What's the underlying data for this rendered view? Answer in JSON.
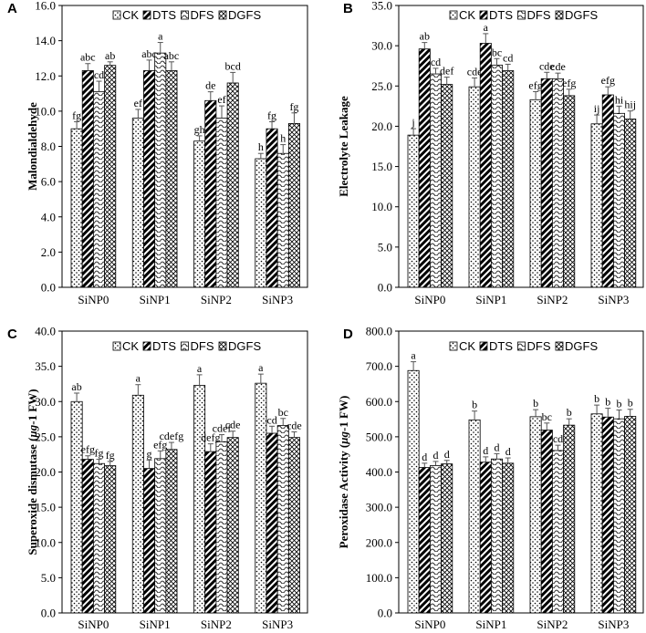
{
  "chart_data": [
    {
      "panel": "A",
      "type": "bar",
      "ylabel": "Malondialdehyde",
      "ylim": [
        0,
        16
      ],
      "yticks": [
        "0.0",
        "2.0",
        "4.0",
        "6.0",
        "8.0",
        "10.0",
        "12.0",
        "14.0",
        "16.0"
      ],
      "categories": [
        "SiNP0",
        "SiNP1",
        "SiNP2",
        "SiNP3"
      ],
      "series": [
        {
          "name": "CK",
          "values": [
            9.0,
            9.6,
            8.3,
            7.3
          ],
          "errors": [
            0.4,
            0.5,
            0.3,
            0.3
          ],
          "labels": [
            "fg",
            "ef",
            "gh",
            "h"
          ]
        },
        {
          "name": "DTS",
          "values": [
            12.3,
            12.3,
            10.6,
            9.0
          ],
          "errors": [
            0.4,
            0.6,
            0.5,
            0.4
          ],
          "labels": [
            "abc",
            "abc",
            "de",
            "fg"
          ]
        },
        {
          "name": "DFS",
          "values": [
            11.1,
            13.3,
            9.6,
            7.6
          ],
          "errors": [
            0.6,
            0.6,
            0.7,
            0.5
          ],
          "labels": [
            "cd",
            "a",
            "ef",
            "h"
          ]
        },
        {
          "name": "DGFS",
          "values": [
            12.6,
            12.3,
            11.6,
            9.3
          ],
          "errors": [
            0.2,
            0.5,
            0.6,
            0.6
          ],
          "labels": [
            "ab",
            "abc",
            "bcd",
            "fg"
          ]
        }
      ]
    },
    {
      "panel": "B",
      "type": "bar",
      "ylabel": "Electrolyte Leakage",
      "ylim": [
        0,
        35
      ],
      "yticks": [
        "0.0",
        "5.0",
        "10.0",
        "15.0",
        "20.0",
        "25.0",
        "30.0",
        "35.0"
      ],
      "categories": [
        "SiNP0",
        "SiNP1",
        "SiNP2",
        "SiNP3"
      ],
      "series": [
        {
          "name": "CK",
          "values": [
            18.9,
            24.9,
            23.3,
            20.3
          ],
          "errors": [
            0.8,
            1.1,
            1.0,
            1.1
          ],
          "labels": [
            "j",
            "cde",
            "efg",
            "ij"
          ]
        },
        {
          "name": "DTS",
          "values": [
            29.6,
            30.3,
            25.9,
            23.9
          ],
          "errors": [
            0.8,
            1.2,
            0.8,
            1.0
          ],
          "labels": [
            "ab",
            "a",
            "cde",
            "efg"
          ]
        },
        {
          "name": "DFS",
          "values": [
            26.5,
            27.6,
            25.9,
            21.6
          ],
          "errors": [
            0.7,
            0.8,
            0.7,
            0.9
          ],
          "labels": [
            "cd",
            "bc",
            "cde",
            "hi"
          ]
        },
        {
          "name": "DGFS",
          "values": [
            25.2,
            26.9,
            23.8,
            20.9
          ],
          "errors": [
            0.9,
            0.8,
            0.8,
            1.0
          ],
          "labels": [
            "def",
            "cd",
            "efg",
            "hij"
          ]
        }
      ]
    },
    {
      "panel": "C",
      "type": "bar",
      "ylabel": "Superoxide dismutase (μg-1 FW)",
      "ylim": [
        0,
        40
      ],
      "yticks": [
        "0.0",
        "5.0",
        "10.0",
        "15.0",
        "20.0",
        "25.0",
        "30.0",
        "35.0",
        "40.0"
      ],
      "categories": [
        "SiNP0",
        "SiNP1",
        "SiNP2",
        "SiNP3"
      ],
      "series": [
        {
          "name": "CK",
          "values": [
            30.0,
            30.9,
            32.3,
            32.6
          ],
          "errors": [
            1.2,
            1.5,
            1.5,
            1.3
          ],
          "labels": [
            "ab",
            "a",
            "a",
            "a"
          ]
        },
        {
          "name": "DTS",
          "values": [
            21.8,
            20.5,
            22.9,
            25.5
          ],
          "errors": [
            0.5,
            1.2,
            1.1,
            1.0
          ],
          "labels": [
            "efg",
            "g",
            "defg",
            "cd"
          ]
        },
        {
          "name": "DFS",
          "values": [
            21.2,
            21.9,
            24.3,
            26.6
          ],
          "errors": [
            0.6,
            1.1,
            1.0,
            1.0
          ],
          "labels": [
            "fg",
            "efg",
            "cdef",
            "bc"
          ]
        },
        {
          "name": "DGFS",
          "values": [
            20.9,
            23.2,
            24.9,
            24.9
          ],
          "errors": [
            0.6,
            1.0,
            0.9,
            0.8
          ],
          "labels": [
            "fg",
            "cdefg",
            "cde",
            "cde"
          ]
        }
      ]
    },
    {
      "panel": "D",
      "type": "bar",
      "ylabel": "Peroxidase Activity (μg-1 FW)",
      "ylim": [
        0,
        800
      ],
      "yticks": [
        "0.0",
        "100.0",
        "200.0",
        "300.0",
        "400.0",
        "500.0",
        "600.0",
        "700.0",
        "800.0"
      ],
      "categories": [
        "SiNP0",
        "SiNP1",
        "SiNP2",
        "SiNP3"
      ],
      "series": [
        {
          "name": "CK",
          "values": [
            688,
            548,
            557,
            565
          ],
          "errors": [
            25,
            25,
            20,
            25
          ],
          "labels": [
            "a",
            "b",
            "b",
            "b"
          ]
        },
        {
          "name": "DTS",
          "values": [
            413,
            428,
            519,
            556
          ],
          "errors": [
            12,
            15,
            20,
            25
          ],
          "labels": [
            "d",
            "d",
            "bc",
            "b"
          ]
        },
        {
          "name": "DFS",
          "values": [
            418,
            437,
            461,
            551
          ],
          "errors": [
            12,
            15,
            15,
            25
          ],
          "labels": [
            "d",
            "d",
            "cd",
            "b"
          ]
        },
        {
          "name": "DGFS",
          "values": [
            423,
            425,
            533,
            558
          ],
          "errors": [
            10,
            15,
            18,
            20
          ],
          "labels": [
            "d",
            "d",
            "b",
            "b"
          ]
        }
      ]
    }
  ]
}
